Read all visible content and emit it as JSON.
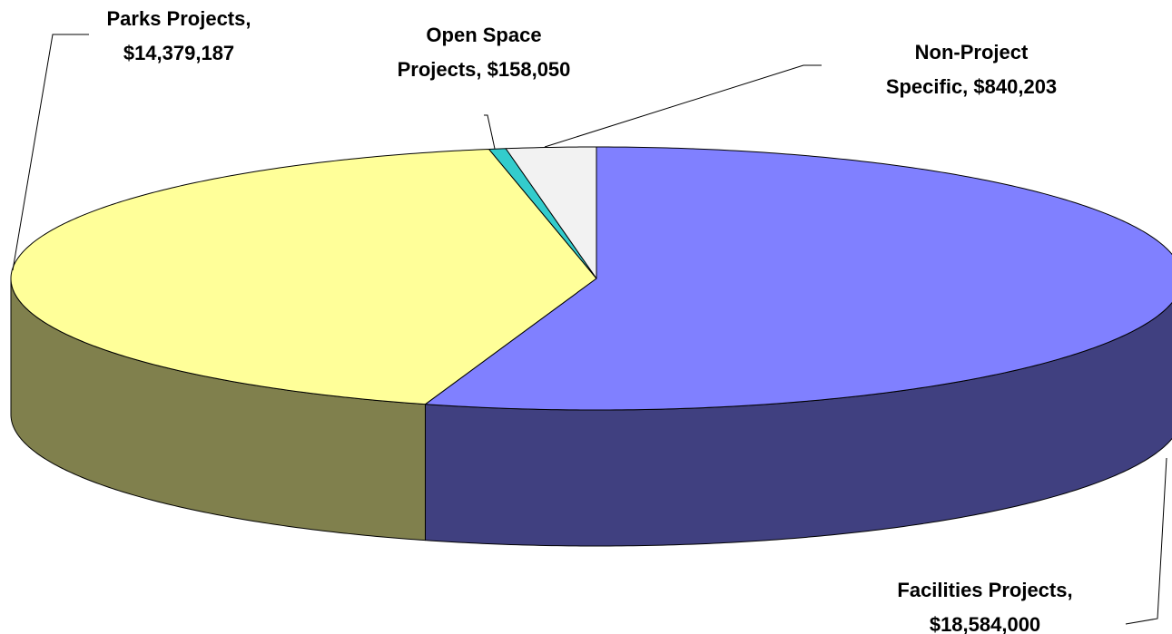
{
  "chart_data": {
    "type": "pie3d",
    "values": [
      18584000,
      14379187,
      158050,
      840203
    ],
    "value_labels": [
      "Facilities Projects, $18,584,000",
      "Parks Projects, $14,379,187",
      "Open Space Projects, $158,050",
      "Non-Project Specific, $840,203"
    ],
    "colors": [
      "#8080ff",
      "#ffff99",
      "#33cccc",
      "#f2f2f2"
    ]
  }
}
